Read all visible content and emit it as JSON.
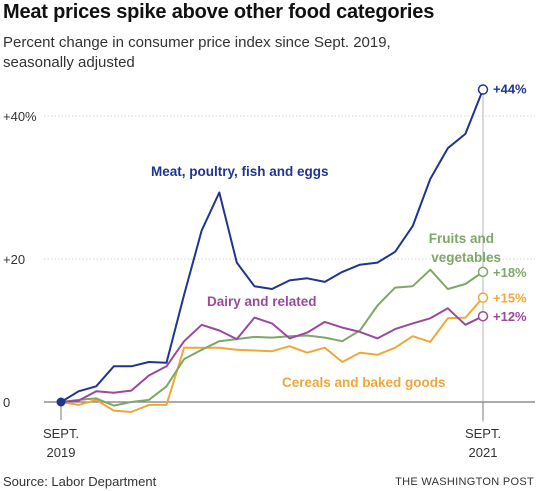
{
  "title": "Meat prices spike above other food categories",
  "subtitle": "Percent change in consumer price index since Sept. 2019, seasonally adjusted",
  "source": "Source: Labor Department",
  "credit": "THE WASHINGTON POST",
  "chart_data": {
    "type": "line",
    "ylim": [
      0,
      44
    ],
    "y_ticks": [
      {
        "value": 0,
        "label": "0"
      },
      {
        "value": 20,
        "label": "+20"
      },
      {
        "value": 40,
        "label": "+40%"
      }
    ],
    "x_tick_labels": [
      {
        "month_index": 0,
        "line1": "SEPT.",
        "line2": "2019"
      },
      {
        "month_index": 24,
        "line1": "SEPT.",
        "line2": "2021"
      }
    ],
    "grid": true,
    "series": [
      {
        "name": "Meat, poultry, fish and eggs",
        "color": "#1f3591",
        "end_label": "+44%",
        "values": [
          0,
          1.5,
          2.2,
          5.0,
          5.0,
          5.6,
          5.5,
          15.0,
          24.0,
          29.3,
          19.5,
          16.2,
          15.8,
          17.0,
          17.3,
          16.8,
          18.2,
          19.2,
          19.5,
          21.0,
          24.6,
          31.2,
          35.5,
          37.5,
          43.7
        ]
      },
      {
        "name": "Fruits and vegetables",
        "color": "#7ea867",
        "end_label": "+18%",
        "values": [
          0,
          0.3,
          0.5,
          -0.5,
          0.0,
          0.3,
          2.2,
          6.0,
          7.3,
          8.5,
          8.8,
          9.1,
          9.0,
          9.2,
          9.3,
          9.0,
          8.5,
          10.0,
          13.5,
          16.0,
          16.2,
          18.5,
          15.8,
          16.5,
          18.2
        ]
      },
      {
        "name": "Dairy and related",
        "color": "#9b4a9b",
        "end_label": "+12%",
        "values": [
          0,
          0.2,
          1.5,
          1.3,
          1.6,
          3.7,
          5.0,
          8.5,
          10.8,
          10.0,
          8.8,
          11.8,
          11.0,
          8.9,
          9.7,
          11.2,
          10.4,
          9.8,
          8.9,
          10.2,
          11.0,
          11.7,
          13.1,
          10.8,
          12.0
        ]
      },
      {
        "name": "Cereals and baked goods",
        "color": "#f0a73a",
        "end_label": "+15%",
        "values": [
          0,
          -0.4,
          0.3,
          -1.2,
          -1.4,
          -0.4,
          -0.4,
          7.6,
          7.6,
          7.6,
          7.3,
          7.2,
          7.1,
          7.8,
          6.9,
          7.6,
          5.6,
          6.9,
          6.6,
          7.6,
          9.2,
          8.4,
          11.7,
          11.8,
          14.6
        ]
      }
    ]
  }
}
